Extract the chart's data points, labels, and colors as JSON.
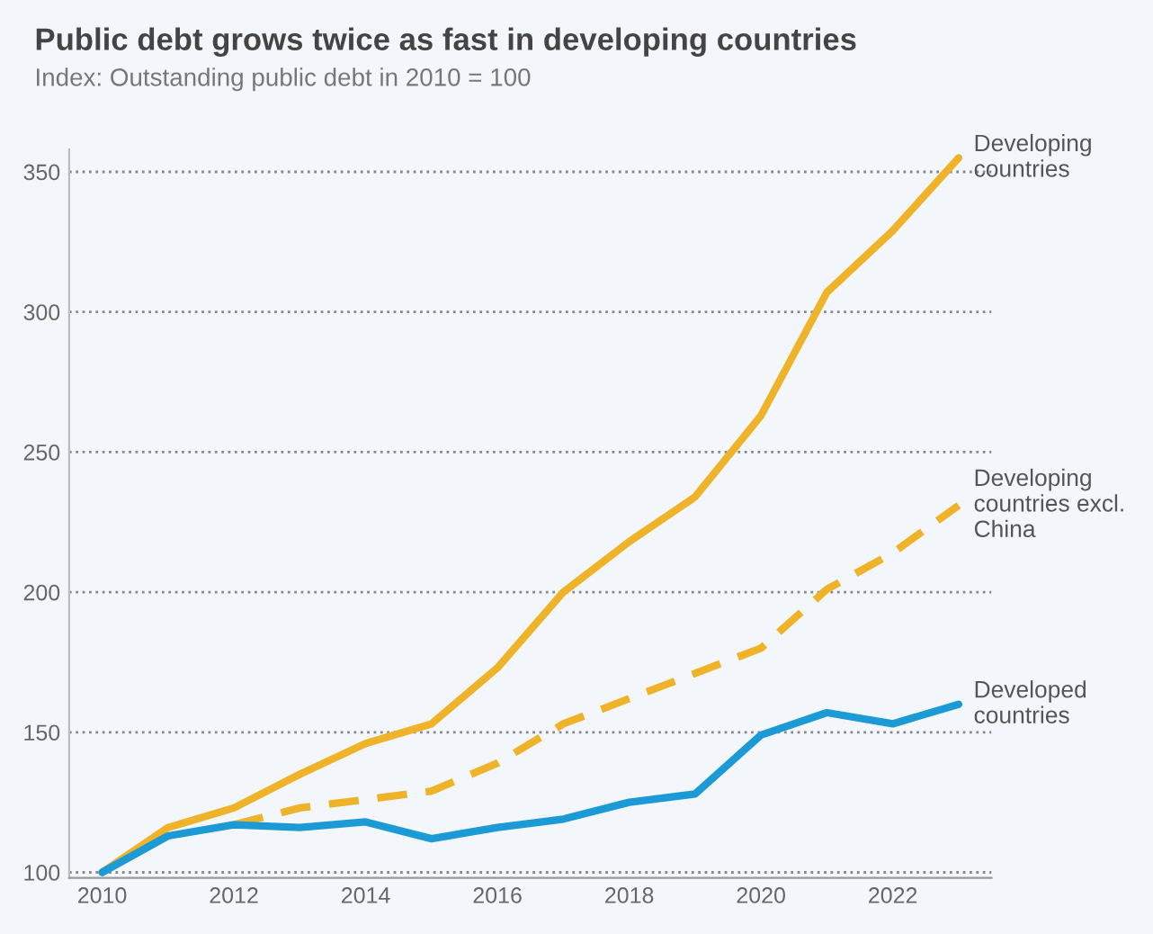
{
  "chart_data": {
    "type": "line",
    "title": "Public debt grows twice as fast in developing countries",
    "subtitle": "Index: Outstanding public debt in 2010 = 100",
    "x": [
      2010,
      2011,
      2012,
      2013,
      2014,
      2015,
      2016,
      2017,
      2018,
      2019,
      2020,
      2021,
      2022,
      2023
    ],
    "series": [
      {
        "name": "Developing countries",
        "color": "#efb32a",
        "line_style": "solid",
        "values": [
          100,
          116,
          123,
          135,
          146,
          153,
          173,
          200,
          218,
          234,
          263,
          307,
          329,
          355
        ]
      },
      {
        "name": "Developing countries excl. China",
        "color": "#efb32a",
        "line_style": "dashed",
        "x": [
          2012,
          2013,
          2014,
          2015,
          2016,
          2017,
          2018,
          2019,
          2020,
          2021,
          2022,
          2023
        ],
        "values": [
          117,
          123,
          126,
          129,
          139,
          153,
          162,
          171,
          180,
          201,
          214,
          231
        ]
      },
      {
        "name": "Developed countries",
        "color": "#1b9ad6",
        "line_style": "solid",
        "values": [
          100,
          113,
          117,
          116,
          118,
          112,
          116,
          119,
          125,
          128,
          149,
          157,
          153,
          160
        ]
      }
    ],
    "xlim": [
      2009.5,
      2023.5
    ],
    "xticks": [
      2010,
      2012,
      2014,
      2016,
      2018,
      2020,
      2022
    ],
    "ylim": [
      98,
      358
    ],
    "yticks": [
      100,
      150,
      200,
      250,
      300,
      350
    ],
    "grid": "y",
    "legend": false
  }
}
